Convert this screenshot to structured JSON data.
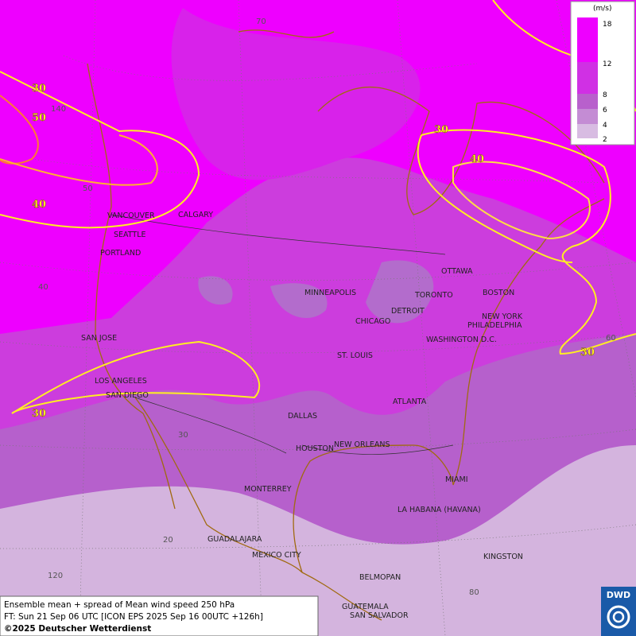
{
  "legend": {
    "unit": "(m/s)",
    "ticks": [
      "18",
      "12",
      "8",
      "6",
      "4",
      "2"
    ]
  },
  "cities": [
    "VANCOUVER",
    "CALGARY",
    "SEATTLE",
    "PORTLAND",
    "SAN JOSE",
    "LOS ANGELES",
    "SAN DIEGO",
    "MINNEAPOLIS",
    "CHICAGO",
    "DETROIT",
    "TORONTO",
    "OTTAWA",
    "BOSTON",
    "NEW YORK",
    "PHILADELPHIA",
    "WASHINGTON D.C.",
    "ST. LOUIS",
    "ATLANTA",
    "DALLAS",
    "HOUSTON",
    "NEW ORLEANS",
    "MIAMI",
    "MONTERREY",
    "LA HABANA (HAVANA)",
    "GUADALAJARA",
    "MEXICO CITY",
    "KINGSTON",
    "BELMOPAN",
    "GUATEMALA",
    "SAN SALVADOR"
  ],
  "contour_labels": [
    "30",
    "50",
    "40",
    "30",
    "40",
    "30",
    "30"
  ],
  "grid_labels": [
    "70",
    "140",
    "50",
    "40",
    "30",
    "20",
    "120",
    "80",
    "60"
  ],
  "footer": {
    "line1": "Ensemble mean + spread of Mean wind speed 250 hPa",
    "line2": "FT: Sun 21 Sep 06 UTC [ICON EPS 2025 Sep 16 00UTC +126h]",
    "line3": "©2025 Deutscher Wetterdienst"
  },
  "logo": "DWD"
}
